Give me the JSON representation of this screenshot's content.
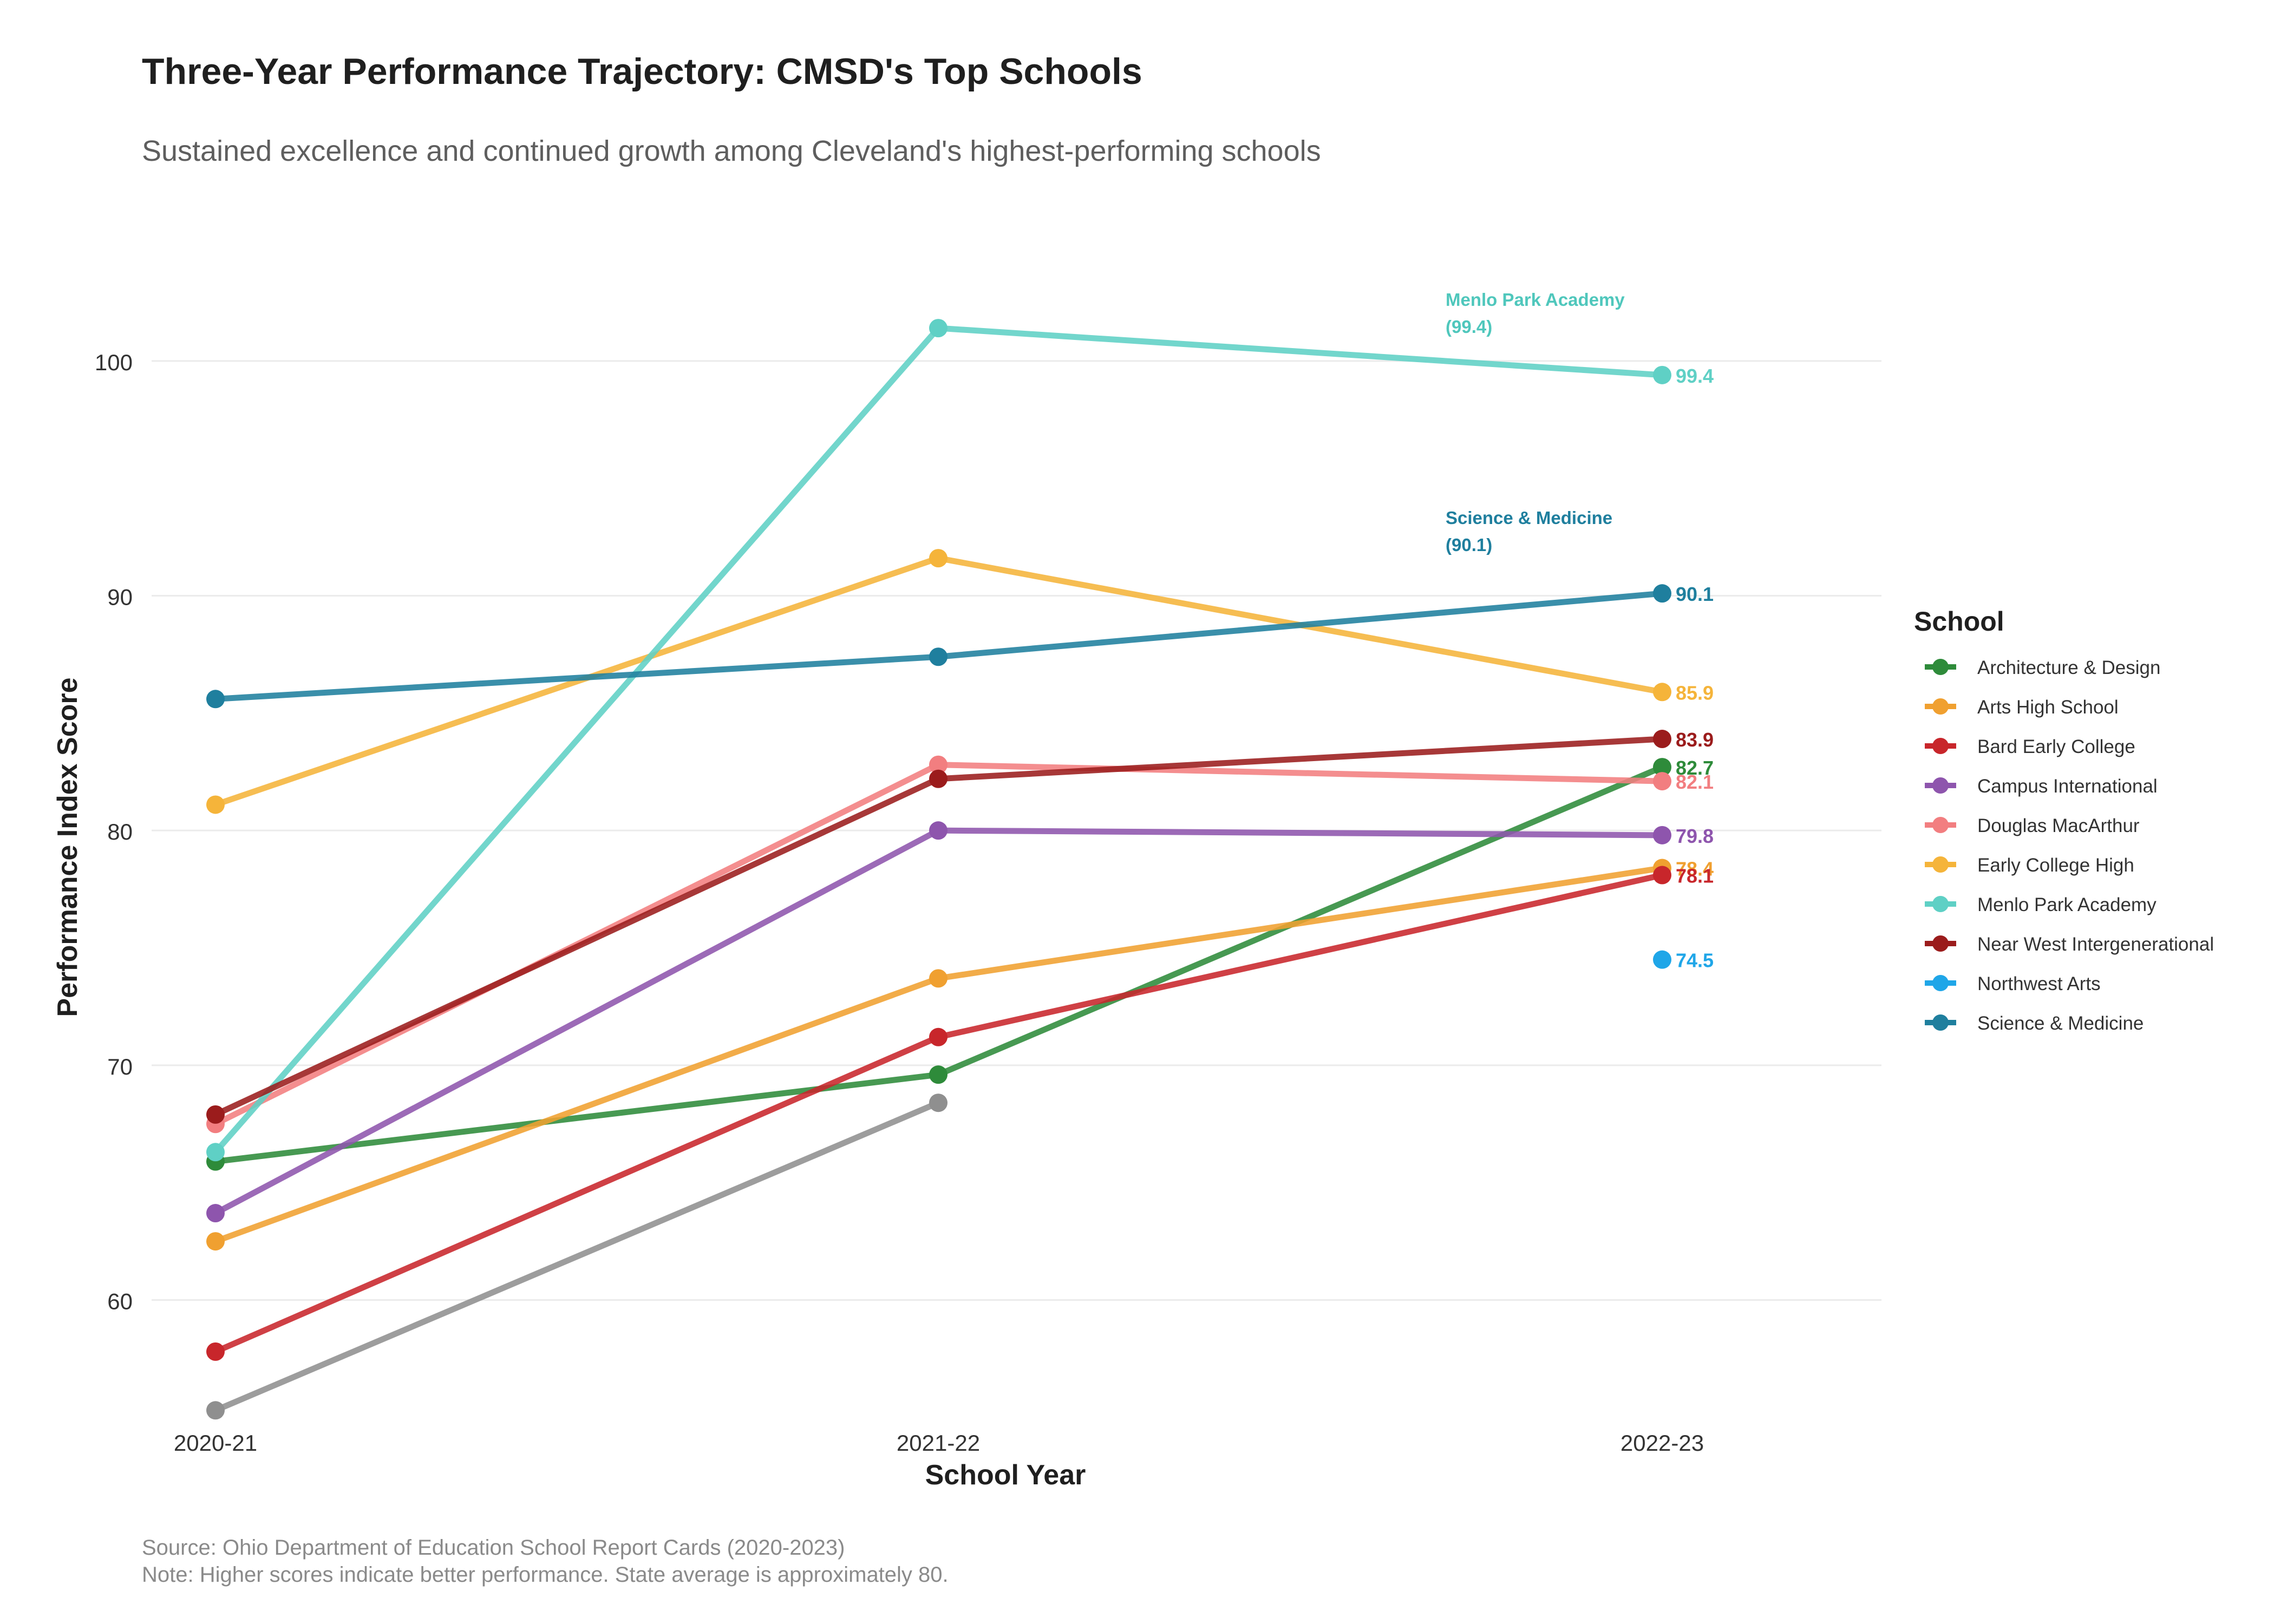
{
  "chart_data": {
    "type": "line",
    "title": "Three-Year Performance Trajectory: CMSD's Top Schools",
    "subtitle": "Sustained excellence and continued growth among Cleveland's highest-performing schools",
    "xlabel": "School Year",
    "ylabel": "Performance Index Score",
    "categories": [
      "2020-21",
      "2021-22",
      "2022-23"
    ],
    "ylim": [
      54.5,
      105
    ],
    "yticks": [
      60,
      70,
      80,
      90,
      100
    ],
    "grid": true,
    "legend": {
      "title": "School",
      "position": "right"
    },
    "series": [
      {
        "name": "Architecture & Design",
        "color": "#2e8b3a",
        "values": [
          65.9,
          69.6,
          82.7
        ],
        "end_label": "82.7"
      },
      {
        "name": "Arts High School",
        "color": "#f0a030",
        "values": [
          62.5,
          73.7,
          78.4
        ],
        "end_label": "78.4"
      },
      {
        "name": "Bard Early College",
        "color": "#c8262b",
        "values": [
          57.8,
          71.2,
          78.1
        ],
        "end_label": "78.1"
      },
      {
        "name": "Campus International",
        "color": "#8e55ad",
        "values": [
          63.7,
          80.0,
          79.8
        ],
        "end_label": "79.8"
      },
      {
        "name": "Douglas MacArthur",
        "color": "#f27e80",
        "values": [
          67.5,
          82.8,
          82.1
        ],
        "end_label": "82.1"
      },
      {
        "name": "Early College High",
        "color": "#f5b43a",
        "values": [
          81.1,
          91.6,
          85.9
        ],
        "end_label": "85.9"
      },
      {
        "name": "Menlo Park Academy",
        "color": "#5fd0c5",
        "values": [
          66.3,
          101.4,
          99.4
        ],
        "end_label": "99.4"
      },
      {
        "name": "Near West Intergenerational",
        "color": "#9b1c1c",
        "values": [
          67.9,
          82.2,
          83.9
        ],
        "end_label": "83.9"
      },
      {
        "name": "Northwest Arts",
        "color": "#1fa6e8",
        "values": [
          null,
          null,
          74.5
        ],
        "end_label": "74.5"
      },
      {
        "name": "Science & Medicine",
        "color": "#1f7f9e",
        "values": [
          85.6,
          87.4,
          90.1
        ],
        "end_label": "90.1"
      },
      {
        "color": "#8f8f8f",
        "values": [
          55.3,
          68.4,
          null
        ],
        "in_legend": false
      }
    ],
    "annotations": [
      {
        "series": "Menlo Park Academy",
        "line1": "Menlo Park Academy",
        "line2": "(99.4)",
        "color": "#4fc7bc",
        "anchor_y": 99.4
      },
      {
        "series": "Science & Medicine",
        "line1": "Science & Medicine",
        "line2": "(90.1)",
        "color": "#1f7f9e",
        "anchor_y": 90.1
      }
    ],
    "source": "Source: Ohio Department of Education School Report Cards (2020-2023)",
    "note": "Note: Higher scores indicate better performance. State average is approximately 80."
  }
}
